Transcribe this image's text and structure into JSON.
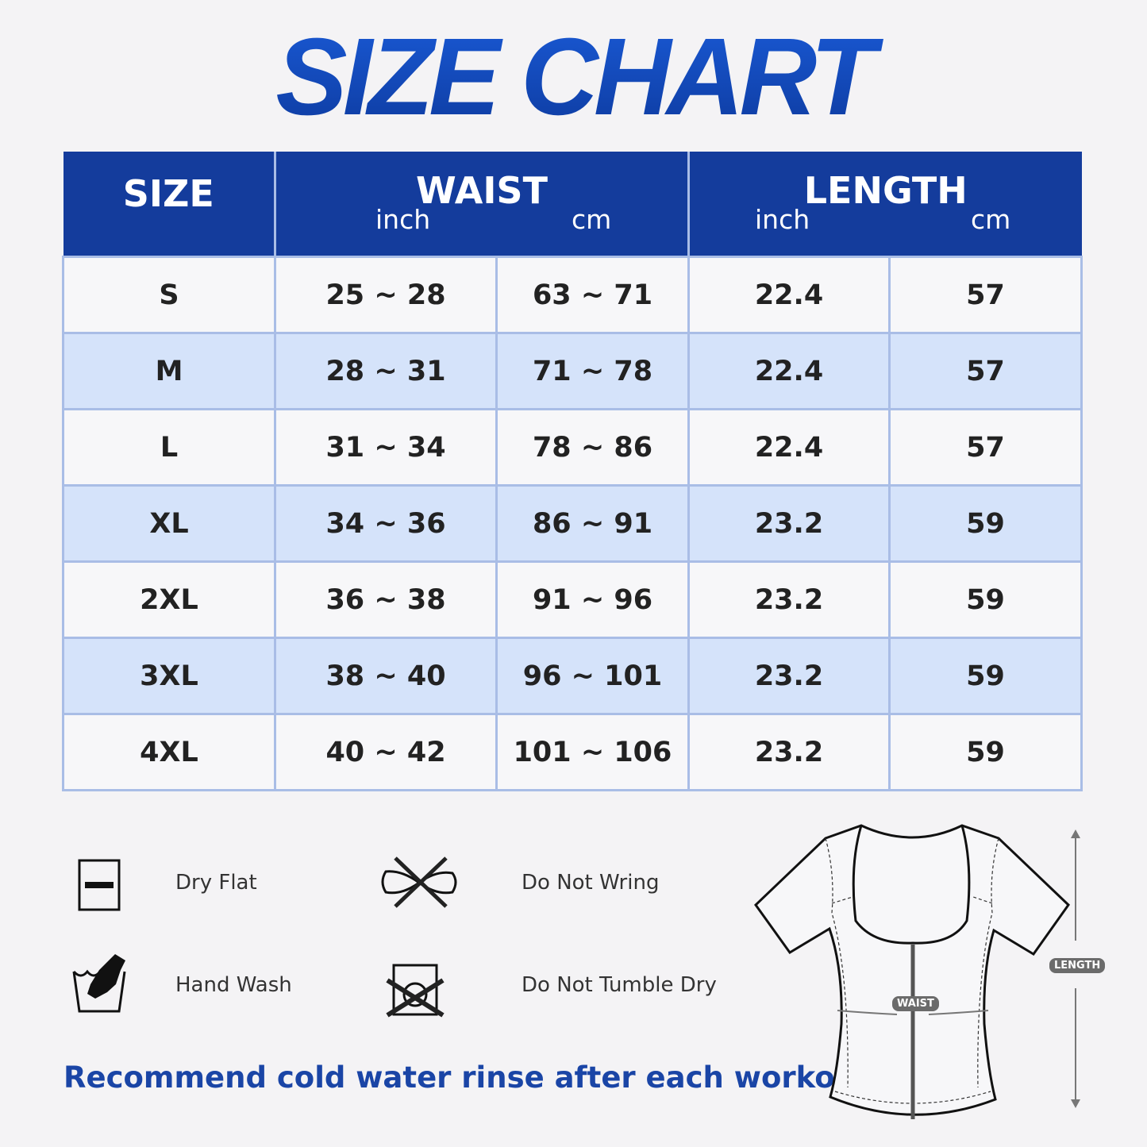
{
  "title": "SIZE CHART",
  "table": {
    "headers": {
      "size": "SIZE",
      "waist": "WAIST",
      "length": "LENGTH",
      "inch": "inch",
      "cm": "cm"
    },
    "rows": [
      {
        "size": "S",
        "waist_inch": "25 ~ 28",
        "waist_cm": "63 ~ 71",
        "length_inch": "22.4",
        "length_cm": "57"
      },
      {
        "size": "M",
        "waist_inch": "28 ~ 31",
        "waist_cm": "71 ~ 78",
        "length_inch": "22.4",
        "length_cm": "57"
      },
      {
        "size": "L",
        "waist_inch": "31 ~ 34",
        "waist_cm": "78 ~ 86",
        "length_inch": "22.4",
        "length_cm": "57"
      },
      {
        "size": "XL",
        "waist_inch": "34 ~ 36",
        "waist_cm": "86 ~ 91",
        "length_inch": "23.2",
        "length_cm": "59"
      },
      {
        "size": "2XL",
        "waist_inch": "36 ~ 38",
        "waist_cm": "91 ~ 96",
        "length_inch": "23.2",
        "length_cm": "59"
      },
      {
        "size": "3XL",
        "waist_inch": "38 ~ 40",
        "waist_cm": "96 ~ 101",
        "length_inch": "23.2",
        "length_cm": "59"
      },
      {
        "size": "4XL",
        "waist_inch": "40 ~ 42",
        "waist_cm": "101 ~ 106",
        "length_inch": "23.2",
        "length_cm": "59"
      }
    ]
  },
  "care": [
    {
      "icon": "dry-flat-icon",
      "label": "Dry Flat"
    },
    {
      "icon": "do-not-wring-icon",
      "label": "Do Not Wring"
    },
    {
      "icon": "hand-wash-icon",
      "label": "Hand Wash"
    },
    {
      "icon": "do-not-tumble-dry-icon",
      "label": "Do Not Tumble Dry"
    }
  ],
  "recommendation": "Recommend cold water rinse after each workout.",
  "diagram": {
    "waist_label": "WAIST",
    "length_label": "LENGTH"
  },
  "colors": {
    "header": "#143c9c",
    "alt_row": "#d5e3fa",
    "border": "#a9bde6",
    "accent_text": "#1a45a6"
  }
}
